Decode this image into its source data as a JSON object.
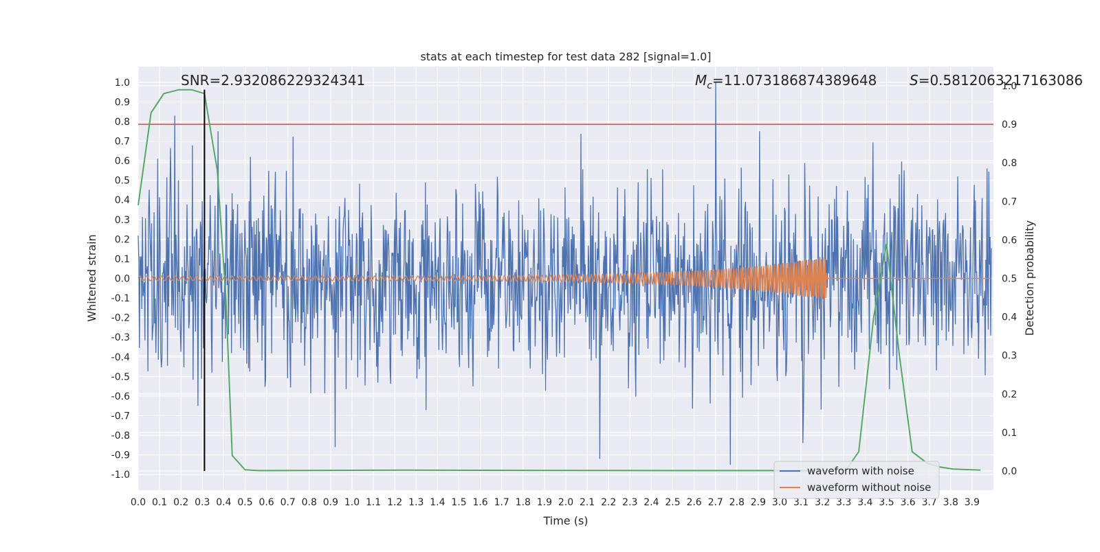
{
  "chart_data": {
    "type": "line",
    "title": "stats at each timestep for test data 282 [signal=1.0]",
    "xlabel": "Time (s)",
    "ylabel": "Whitened strain",
    "y2label": "Detection probability",
    "xlim": [
      0.0,
      4.0
    ],
    "ylim": [
      -1.08,
      1.08
    ],
    "y2lim": [
      -0.05,
      1.05
    ],
    "xticks": [
      "0.0",
      "0.1",
      "0.2",
      "0.3",
      "0.4",
      "0.5",
      "0.6",
      "0.7",
      "0.8",
      "0.9",
      "1.0",
      "1.1",
      "1.2",
      "1.3",
      "1.4",
      "1.5",
      "1.6",
      "1.7",
      "1.8",
      "1.9",
      "2.0",
      "2.1",
      "2.2",
      "2.3",
      "2.4",
      "2.5",
      "2.6",
      "2.7",
      "2.8",
      "2.9",
      "3.0",
      "3.1",
      "3.2",
      "3.3",
      "3.4",
      "3.5",
      "3.6",
      "3.7",
      "3.8",
      "3.9"
    ],
    "yticks": [
      "1.0",
      "0.9",
      "0.8",
      "0.7",
      "0.6",
      "0.5",
      "0.4",
      "0.3",
      "0.2",
      "0.1",
      "0.0",
      "-0.1",
      "-0.2",
      "-0.3",
      "-0.4",
      "-0.5",
      "-0.6",
      "-0.7",
      "-0.8",
      "-0.9",
      "-1.0"
    ],
    "y2ticks": [
      "1.0",
      "0.9",
      "0.8",
      "0.7",
      "0.6",
      "0.5",
      "0.4",
      "0.3",
      "0.2",
      "0.1",
      "0.0"
    ],
    "grid": true,
    "legend_position": "bottom-right",
    "annotations": {
      "snr": "SNR=2.932086229324341",
      "mc_symbol": "M",
      "mc_sub": "c",
      "mc_value": "=11.073186874389648",
      "s_symbol": "S",
      "s_value": "=0.5812063217163086"
    },
    "threshold_line": {
      "axis": "right",
      "y": 0.9,
      "color": "#c44e52"
    },
    "vertical_marker": {
      "x": 0.31,
      "color": "#000000"
    },
    "series": [
      {
        "name": "waveform with noise",
        "color": "#4c72b0",
        "axis": "left",
        "description_values": "dense noise, typical amplitude 0.35, peaks up to 1.0",
        "peaks": [
          [
            0.17,
            0.83
          ],
          [
            0.28,
            -0.65
          ],
          [
            0.92,
            -0.86
          ],
          [
            2.16,
            -0.92
          ],
          [
            2.7,
            1.0
          ],
          [
            2.77,
            -0.95
          ],
          [
            3.11,
            -0.84
          ]
        ]
      },
      {
        "name": "waveform without noise",
        "color": "#dd8452",
        "axis": "left",
        "chirp": {
          "start_amp": 0.012,
          "end_amp": 0.11,
          "merger_time": 3.22,
          "start_freq_hz": 30,
          "end_freq_hz": 120
        }
      },
      {
        "name": "detection probability",
        "color": "#55a868",
        "axis": "right",
        "x": [
          0.0,
          0.06,
          0.12,
          0.19,
          0.25,
          0.31,
          0.37,
          0.41,
          0.44,
          0.5,
          0.56,
          0.62,
          1.25,
          2.5,
          3.12,
          3.25,
          3.31,
          3.37,
          3.44,
          3.5,
          3.56,
          3.62,
          3.69,
          3.75,
          3.81,
          3.94
        ],
        "y": [
          0.69,
          0.93,
          0.98,
          0.99,
          0.99,
          0.98,
          0.78,
          0.45,
          0.04,
          0.003,
          0.001,
          0.001,
          0.002,
          0.001,
          0.001,
          0.001,
          0.002,
          0.05,
          0.4,
          0.59,
          0.3,
          0.05,
          0.02,
          0.01,
          0.005,
          0.002
        ]
      }
    ]
  }
}
